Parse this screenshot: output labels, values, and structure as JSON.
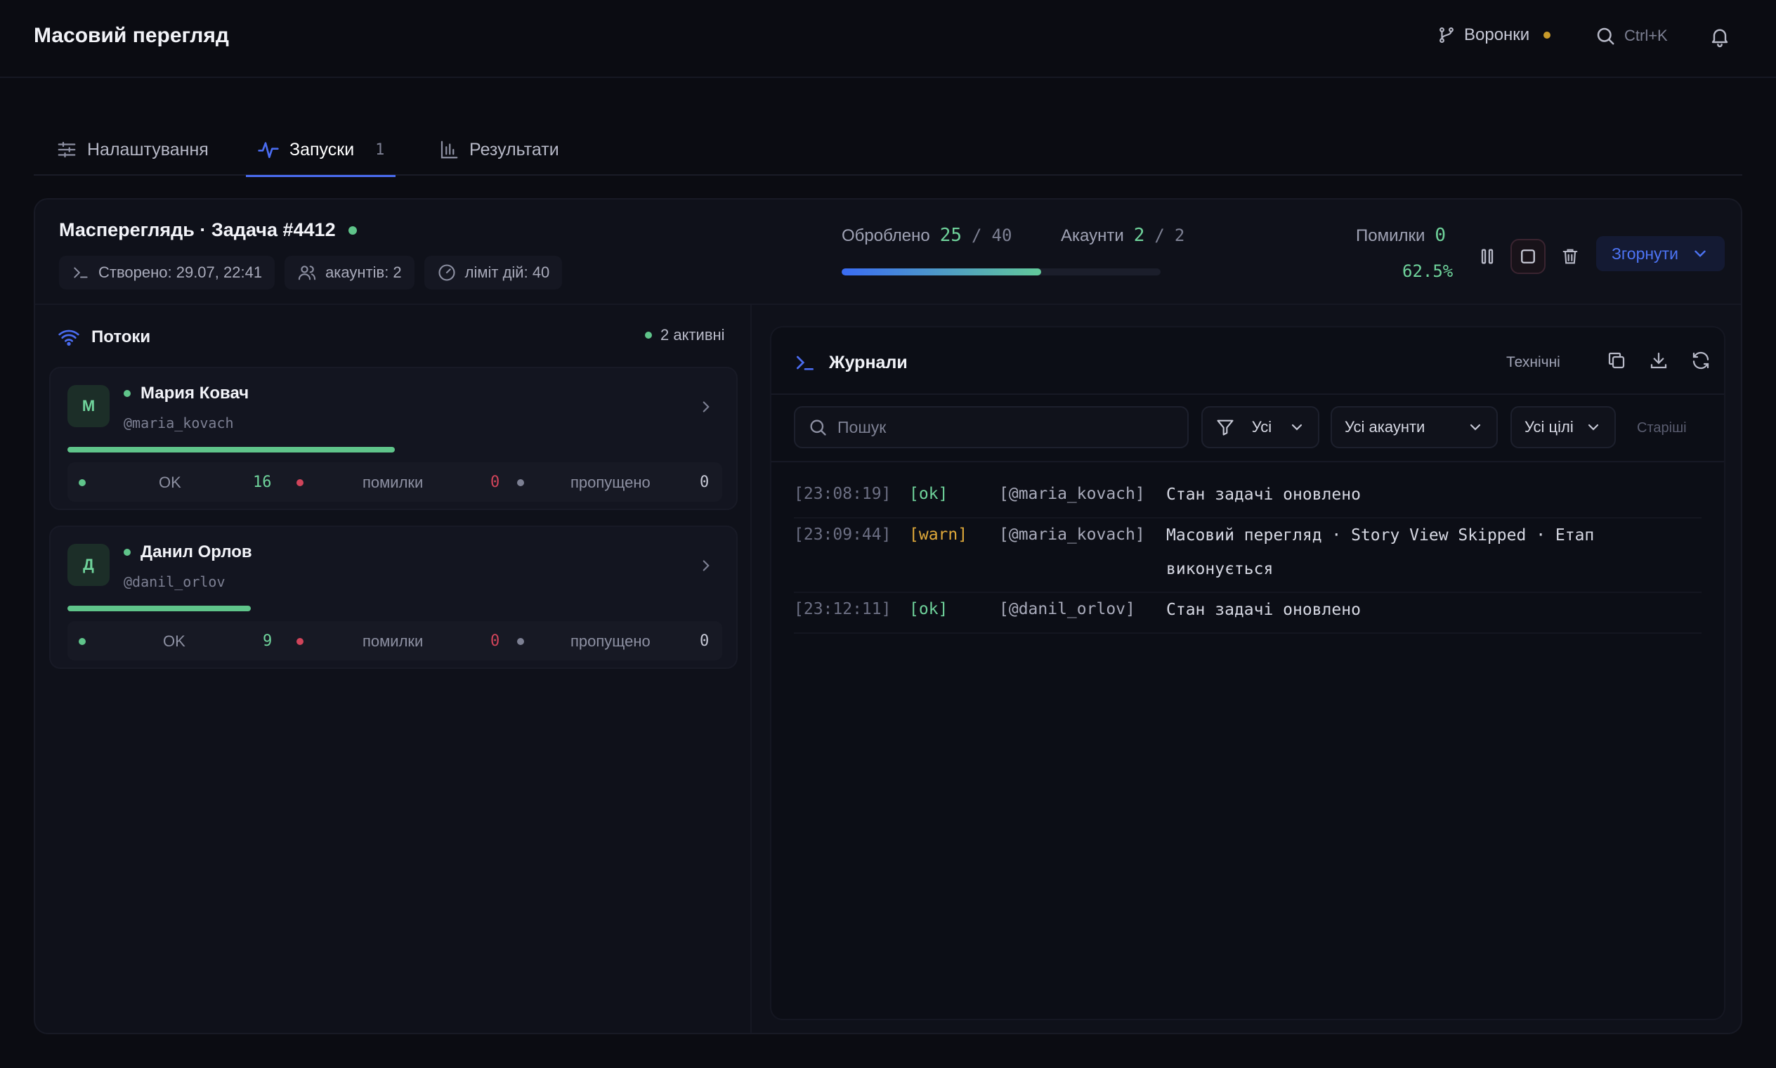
{
  "header": {
    "title": "Масовий перегляд",
    "funnels_label": "Воронки",
    "search_shortcut": "Ctrl+K"
  },
  "tabs": [
    {
      "label": "Налаштування"
    },
    {
      "label": "Запуски",
      "count": "1"
    },
    {
      "label": "Результати"
    }
  ],
  "run": {
    "title": "Маспереглядь · Задача #4412",
    "created": "Створено: 29.07, 22:41",
    "accounts_chip": "акаунтів: 2",
    "limit_chip": "ліміт дій: 40",
    "processed_label": "Оброблено",
    "processed_value": "25",
    "processed_total": "40",
    "accounts_label": "Акаунти",
    "accounts_value": "2",
    "accounts_total": "2",
    "errors_label": "Помилки",
    "errors_value": "0",
    "progress_percent": "62.5%",
    "progress_fraction": 0.625,
    "collapse_label": "Згорнути"
  },
  "streams": {
    "title": "Потоки",
    "active_label": "2 активні",
    "items": [
      {
        "initial": "М",
        "name": "Мария Ковач",
        "handle": "@maria_kovach",
        "progress": 0.5,
        "ok_label": "OK",
        "ok": "16",
        "err_label": "помилки",
        "err": "0",
        "skip_label": "пропущено",
        "skip": "0"
      },
      {
        "initial": "Д",
        "name": "Данил Орлов",
        "handle": "@danil_orlov",
        "progress": 0.28,
        "ok_label": "OK",
        "ok": "9",
        "err_label": "помилки",
        "err": "0",
        "skip_label": "пропущено",
        "skip": "0"
      }
    ]
  },
  "logs": {
    "title": "Журнали",
    "tech_label": "Технічні",
    "search_placeholder": "Пошук",
    "filter_level": "Усі",
    "filter_accounts": "Усі акаунти",
    "filter_targets": "Усі цілі",
    "older_label": "Старіші",
    "lines": [
      {
        "time": "[23:08:19]",
        "level": "[ok]",
        "account": "[@maria_kovach]",
        "message": "Стан задачі оновлено"
      },
      {
        "time": "[23:09:44]",
        "level": "[warn]",
        "account": "[@maria_kovach]",
        "message": "Масовий перегляд · Story View Skipped · Етап виконується"
      },
      {
        "time": "[23:12:11]",
        "level": "[ok]",
        "account": "[@danil_orlov]",
        "message": "Стан задачі оновлено"
      }
    ]
  },
  "colors": {
    "accent": "#4a6cf0",
    "ok": "#5fc48a",
    "warn": "#e0a93a",
    "error": "#d0445a"
  }
}
